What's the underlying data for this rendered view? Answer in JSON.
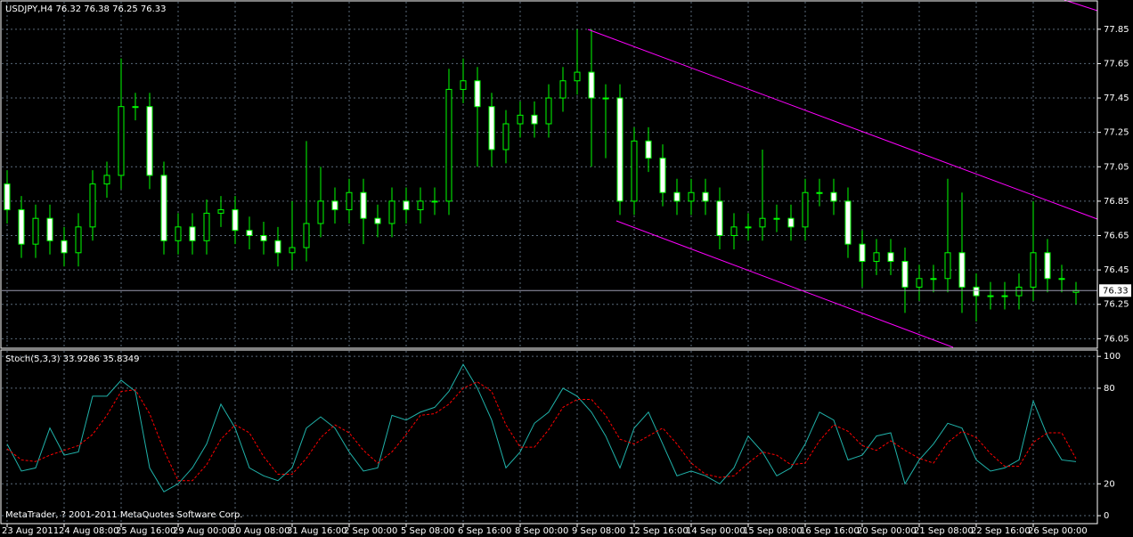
{
  "chart_data": [
    {
      "type": "candlestick",
      "title": "USDJPY,H4 76.32 76.38 76.25 76.33",
      "categories": [
        "23 Aug 2011",
        null,
        null,
        null,
        "24 Aug 08:00",
        null,
        null,
        null,
        "25 Aug 16:00",
        null,
        null,
        null,
        "29 Aug 00:00",
        null,
        null,
        null,
        "30 Aug 08:00",
        null,
        null,
        null,
        "31 Aug 16:00",
        null,
        null,
        null,
        "2 Sep 00:00",
        null,
        null,
        null,
        "5 Sep 08:00",
        null,
        null,
        null,
        "6 Sep 16:00",
        null,
        null,
        null,
        "8 Sep 00:00",
        null,
        null,
        null,
        "9 Sep 08:00",
        null,
        null,
        null,
        "12 Sep 16:00",
        null,
        null,
        null,
        "14 Sep 00:00",
        null,
        null,
        null,
        "15 Sep 08:00",
        null,
        null,
        null,
        "16 Sep 16:00",
        null,
        null,
        null,
        "20 Sep 00:00",
        null,
        null,
        null,
        "21 Sep 08:00",
        null,
        null,
        null,
        "22 Sep 16:00",
        null,
        null,
        null,
        "26 Sep 00:00",
        null,
        null,
        null
      ],
      "open": [
        76.95,
        76.8,
        76.6,
        76.75,
        76.62,
        76.55,
        76.7,
        76.95,
        77.0,
        77.4,
        77.4,
        77.0,
        76.62,
        76.7,
        76.62,
        76.78,
        76.8,
        76.68,
        76.65,
        76.62,
        76.55,
        76.58,
        76.72,
        76.85,
        76.8,
        76.9,
        76.75,
        76.72,
        76.85,
        76.8,
        76.85,
        76.85,
        77.5,
        77.55,
        77.4,
        77.15,
        77.3,
        77.35,
        77.3,
        77.45,
        77.55,
        77.6,
        77.45,
        77.45,
        76.85,
        77.2,
        77.1,
        76.9,
        76.85,
        76.9,
        76.85,
        76.65,
        76.7,
        76.7,
        76.75,
        76.75,
        76.7,
        76.9,
        76.9,
        76.85,
        76.6,
        76.5,
        76.55,
        76.5,
        76.35,
        76.4,
        76.4,
        76.55,
        76.35,
        76.3,
        76.3,
        76.3,
        76.35,
        76.55,
        76.4,
        76.32
      ],
      "high": [
        77.03,
        76.88,
        76.83,
        76.83,
        76.7,
        76.78,
        77.03,
        77.08,
        77.68,
        77.48,
        77.48,
        77.08,
        76.78,
        76.78,
        76.86,
        76.88,
        76.88,
        76.76,
        76.73,
        76.7,
        76.85,
        77.2,
        77.05,
        76.93,
        76.98,
        76.98,
        76.83,
        76.93,
        76.93,
        76.93,
        76.93,
        77.62,
        77.68,
        77.63,
        77.48,
        77.38,
        77.43,
        77.43,
        77.53,
        77.63,
        77.85,
        77.85,
        77.53,
        77.53,
        77.28,
        77.28,
        77.18,
        76.98,
        76.98,
        76.98,
        76.93,
        76.78,
        76.78,
        77.15,
        76.83,
        76.83,
        76.98,
        76.98,
        76.98,
        76.93,
        76.68,
        76.63,
        76.63,
        76.58,
        76.48,
        76.48,
        76.98,
        76.9,
        76.43,
        76.38,
        76.38,
        76.43,
        76.85,
        76.63,
        76.48,
        76.38
      ],
      "low": [
        76.72,
        76.52,
        76.52,
        76.54,
        76.47,
        76.47,
        76.62,
        76.87,
        76.92,
        77.32,
        76.92,
        76.54,
        76.54,
        76.54,
        76.54,
        76.7,
        76.6,
        76.57,
        76.54,
        76.47,
        76.45,
        76.5,
        76.64,
        76.72,
        76.72,
        76.6,
        76.64,
        76.64,
        76.72,
        76.72,
        76.77,
        76.77,
        77.42,
        77.05,
        77.05,
        77.07,
        77.22,
        77.22,
        77.22,
        77.37,
        77.47,
        77.05,
        77.1,
        76.77,
        76.77,
        77.02,
        76.82,
        76.77,
        76.77,
        76.77,
        76.57,
        76.57,
        76.62,
        76.62,
        76.67,
        76.62,
        76.62,
        76.82,
        76.77,
        76.52,
        76.35,
        76.42,
        76.42,
        76.2,
        76.27,
        76.32,
        76.32,
        76.2,
        76.15,
        76.22,
        76.22,
        76.22,
        76.27,
        76.32,
        76.32,
        76.25
      ],
      "close": [
        76.8,
        76.6,
        76.75,
        76.62,
        76.55,
        76.7,
        76.95,
        77.0,
        77.4,
        77.4,
        77.0,
        76.62,
        76.7,
        76.62,
        76.78,
        76.8,
        76.68,
        76.65,
        76.62,
        76.55,
        76.58,
        76.72,
        76.85,
        76.8,
        76.9,
        76.75,
        76.72,
        76.85,
        76.8,
        76.85,
        76.85,
        77.5,
        77.55,
        77.4,
        77.15,
        77.3,
        77.35,
        77.3,
        77.45,
        77.55,
        77.6,
        77.45,
        77.45,
        76.85,
        77.2,
        77.1,
        76.9,
        76.85,
        76.9,
        76.85,
        76.65,
        76.7,
        76.7,
        76.75,
        76.75,
        76.7,
        76.9,
        76.9,
        76.85,
        76.6,
        76.5,
        76.55,
        76.5,
        76.35,
        76.4,
        76.4,
        76.55,
        76.35,
        76.3,
        76.3,
        76.3,
        76.35,
        76.55,
        76.4,
        76.4,
        76.33
      ],
      "current_price": 76.33,
      "ylim": [
        76.0,
        78.02
      ],
      "yticks": [
        76.05,
        76.25,
        76.45,
        76.65,
        76.85,
        77.05,
        77.25,
        77.45,
        77.65,
        77.85
      ],
      "color": "#00ff00",
      "grid": true
    },
    {
      "type": "line",
      "title": "Stoch(5,3,3) 33.9286 35.8349",
      "annotation": "MetaTrader, ? 2001-2011 MetaQuotes Software Corp.",
      "series": [
        {
          "color": "#20b2aa",
          "dash": false,
          "values": [
            45,
            28,
            30,
            55,
            38,
            40,
            75,
            75,
            85,
            78,
            30,
            15,
            20,
            30,
            45,
            70,
            55,
            30,
            25,
            22,
            30,
            55,
            62,
            55,
            40,
            28,
            30,
            63,
            60,
            65,
            68,
            78,
            95,
            80,
            60,
            30,
            40,
            58,
            65,
            80,
            75,
            65,
            50,
            30,
            55,
            65,
            45,
            25,
            28,
            25,
            20,
            30,
            50,
            40,
            25,
            30,
            45,
            65,
            60,
            35,
            38,
            50,
            52,
            20,
            35,
            45,
            58,
            55,
            35,
            28,
            30,
            35,
            72,
            50,
            35,
            33.9286
          ]
        },
        {
          "color": "#ff0000",
          "dash": true,
          "values": [
            42,
            35,
            34,
            38,
            41,
            44,
            51,
            63,
            78,
            79,
            64,
            41,
            22,
            22,
            32,
            48,
            57,
            52,
            37,
            26,
            26,
            36,
            49,
            57,
            52,
            41,
            33,
            40,
            51,
            63,
            64,
            70,
            80,
            84,
            78,
            57,
            43,
            43,
            54,
            68,
            73,
            73,
            63,
            48,
            45,
            50,
            55,
            45,
            33,
            26,
            24,
            25,
            33,
            40,
            38,
            32,
            33,
            47,
            57,
            53,
            44,
            41,
            47,
            41,
            36,
            33,
            46,
            53,
            49,
            39,
            31,
            31,
            46,
            52,
            52,
            35.8349
          ]
        }
      ],
      "ylim": [
        -5,
        104
      ],
      "yticks": [
        0,
        20,
        80,
        100
      ],
      "grid": true
    }
  ]
}
